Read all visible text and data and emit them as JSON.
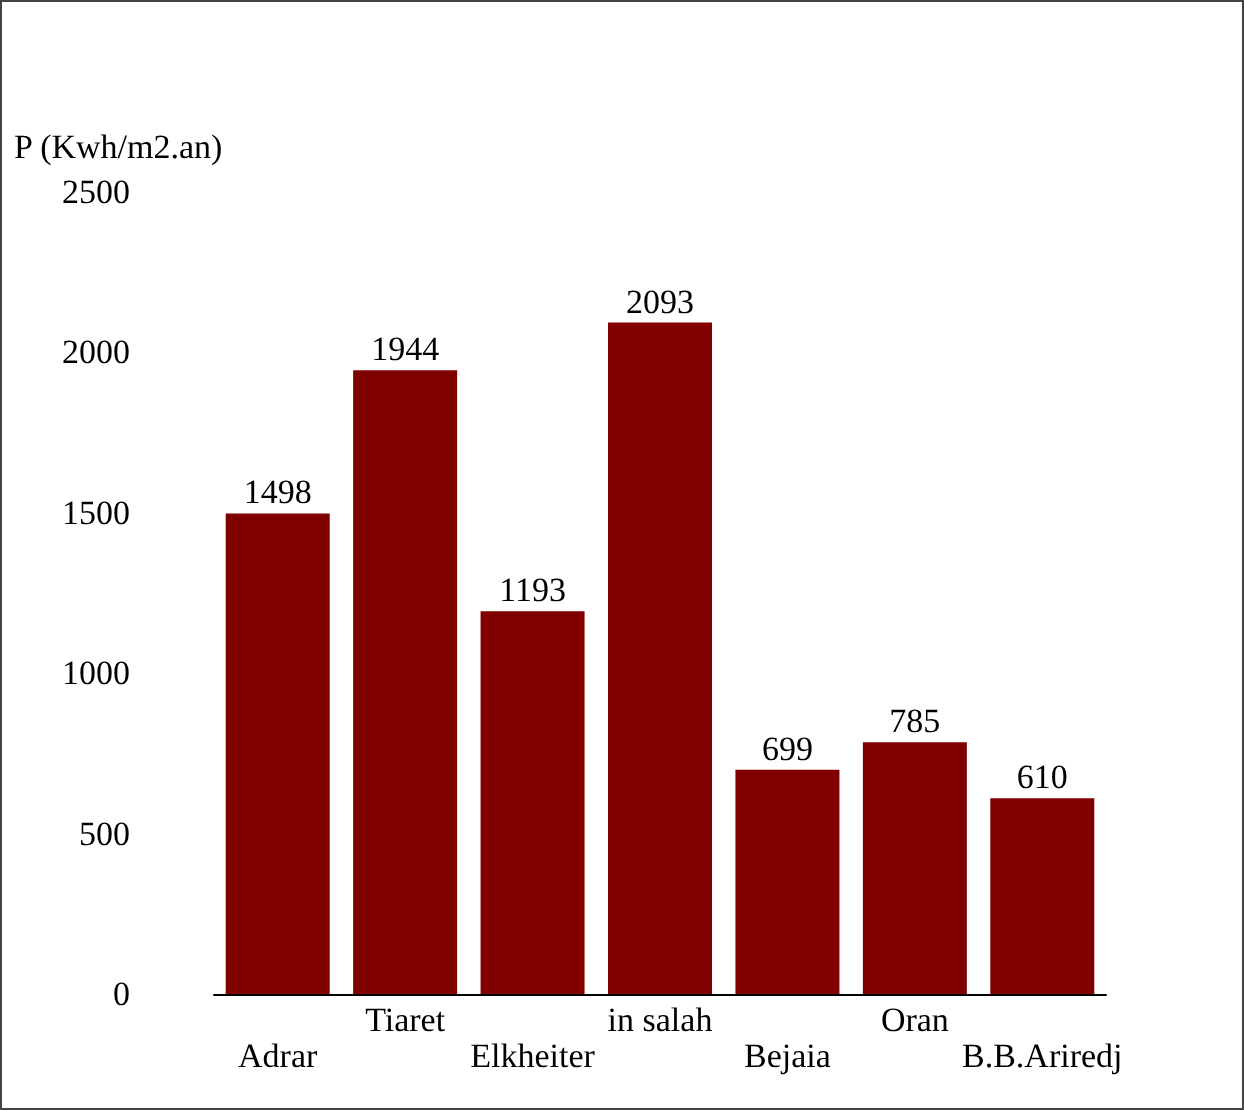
{
  "chart_data": {
    "type": "bar",
    "ylabel": "P (Kwh/m2.an)",
    "categories": [
      "Adrar",
      "Tiaret",
      "Elkheiter",
      "in salah",
      "Bejaia",
      "Oran",
      "B.B.Ariredj"
    ],
    "values": [
      1498,
      1944,
      1193,
      2093,
      699,
      785,
      610
    ],
    "color": "#800000",
    "ylim": [
      0,
      2500
    ],
    "yticks": [
      0,
      500,
      1000,
      1500,
      2000,
      2500
    ],
    "grid": false,
    "data_labels": true
  }
}
